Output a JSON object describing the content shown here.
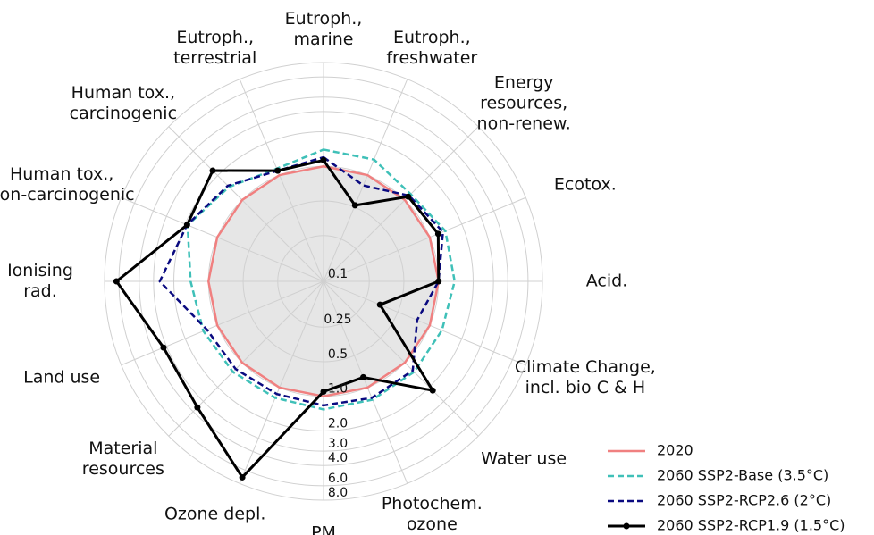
{
  "chart_data": {
    "type": "radar",
    "categories": [
      "Eutroph.,\nmarine",
      "Eutroph.,\nfreshwater",
      "Energy\nresources,\nnon-renew.",
      "Ecotox.",
      "Acid.",
      "Climate Change,\nincl. bio C & H",
      "Water use",
      "Photochem.\nozone",
      "PM",
      "Ozone depl.",
      "Material\nresources",
      "Land use",
      "Ionising\nrad.",
      "Human tox.,\nnon-carcinogenic",
      "Human tox.,\ncarcinogenic",
      "Eutroph.,\nterrestrial"
    ],
    "log_scale": true,
    "ylim": [
      0.1,
      8
    ],
    "yticks": [
      0.1,
      0.25,
      0.5,
      {
        "value": 1,
        "label": "1.0"
      },
      {
        "value": 2,
        "label": "2.0"
      },
      {
        "value": 3,
        "label": "3.0"
      },
      {
        "value": 4,
        "label": "4.0"
      },
      {
        "value": 6,
        "label": "6.0"
      },
      {
        "value": 8,
        "label": "8.0"
      }
    ],
    "grid": true,
    "legend": "lower right",
    "series": [
      {
        "name": "2020",
        "color": "#f08080",
        "fill": "#e6e6e6",
        "style": "solid",
        "marker": false,
        "values": [
          1,
          1,
          1,
          1,
          1,
          1,
          1,
          1,
          1,
          1,
          1,
          1,
          1,
          1,
          1,
          1
        ]
      },
      {
        "name": "2060 SSP2-Base (3.5°C)",
        "color": "#3fc0b8",
        "style": "dashed",
        "marker": false,
        "values": [
          1.4,
          1.4,
          1.18,
          1.4,
          1.38,
          1.3,
          1.3,
          1.3,
          1.3,
          1.25,
          1.3,
          1.35,
          1.43,
          1.9,
          1.45,
          1.15
        ]
      },
      {
        "name": "2060 SSP2-RCP2.6 (2°C)",
        "color": "#0a0a80",
        "style": "dashed",
        "marker": false,
        "values": [
          1.2,
          0.8,
          1.13,
          1.33,
          1.0,
          0.76,
          1.25,
          1.25,
          1.2,
          1.15,
          1.2,
          1.25,
          2.65,
          1.92,
          1.5,
          1.1
        ]
      },
      {
        "name": "2060 SSP2-RCP1.9 (1.5°C)",
        "color": "#000000",
        "style": "solid",
        "marker": true,
        "values": [
          1.13,
          0.52,
          1.1,
          1.2,
          1.0,
          0.34,
          2.2,
          0.8,
          0.91,
          7.0,
          3.55,
          3.2,
          6.3,
          1.92,
          2.3,
          1.1
        ]
      }
    ]
  }
}
